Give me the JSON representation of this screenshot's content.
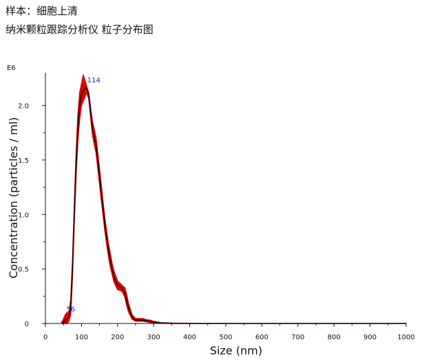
{
  "header": {
    "line1": "样本：细胞上清",
    "line2": "纳米颗粒跟踪分析仪  粒子分布图"
  },
  "colors": {
    "error_band": "#e00000",
    "mean_line": "#111111",
    "axis": "#111111",
    "peak_label": "#1a1acc"
  },
  "chart_data": {
    "type": "area",
    "xlabel": "Size (nm)",
    "ylabel": "Concentration (particles / ml)",
    "y_multiplier_label": "E6",
    "xlim": [
      0,
      1000
    ],
    "ylim": [
      0,
      2.3
    ],
    "x_ticks": [
      0,
      100,
      200,
      300,
      400,
      500,
      600,
      700,
      800,
      900,
      1000
    ],
    "x_tick_labels": [
      "0",
      "100",
      "200",
      "300",
      "400",
      "500",
      "600",
      "700",
      "800",
      "900",
      "1000"
    ],
    "y_ticks": [
      0,
      0.5,
      1.0,
      1.5,
      2.0
    ],
    "y_tick_labels": [
      "0",
      "0.5",
      "1.0",
      "1.5",
      "2.0"
    ],
    "series": [
      {
        "role": "mean",
        "x": [
          45,
          50,
          55,
          60,
          65,
          70,
          75,
          80,
          85,
          90,
          95,
          100,
          105,
          110,
          114,
          120,
          125,
          130,
          135,
          140,
          145,
          150,
          155,
          160,
          165,
          170,
          175,
          180,
          185,
          190,
          200,
          210,
          215,
          220,
          225,
          230,
          240,
          250,
          260,
          270,
          280,
          290,
          300,
          320,
          350,
          400,
          500,
          600,
          700,
          800,
          900,
          1000
        ],
        "y": [
          0,
          0.01,
          0.03,
          0.04,
          0.06,
          0.15,
          0.5,
          1.0,
          1.45,
          1.8,
          2.0,
          2.1,
          2.14,
          2.16,
          2.16,
          2.1,
          1.95,
          1.8,
          1.72,
          1.64,
          1.5,
          1.35,
          1.2,
          1.05,
          0.9,
          0.78,
          0.67,
          0.58,
          0.5,
          0.43,
          0.35,
          0.33,
          0.31,
          0.28,
          0.22,
          0.15,
          0.06,
          0.03,
          0.03,
          0.03,
          0.025,
          0.02,
          0.012,
          0.005,
          0.002,
          0,
          0,
          0,
          0,
          0,
          0,
          0
        ]
      },
      {
        "role": "error_upper",
        "x": [
          45,
          50,
          55,
          60,
          65,
          70,
          75,
          80,
          85,
          90,
          95,
          100,
          105,
          110,
          114,
          120,
          125,
          130,
          135,
          140,
          145,
          150,
          155,
          160,
          165,
          170,
          175,
          180,
          185,
          190,
          200,
          210,
          215,
          220,
          225,
          230,
          240,
          250,
          260,
          270,
          280,
          290,
          300,
          320,
          350,
          400,
          500,
          600,
          700,
          800,
          900,
          1000
        ],
        "y": [
          0.01,
          0.04,
          0.08,
          0.1,
          0.1,
          0.22,
          0.58,
          1.08,
          1.55,
          1.92,
          2.12,
          2.2,
          2.28,
          2.23,
          2.18,
          2.12,
          1.99,
          1.86,
          1.79,
          1.71,
          1.57,
          1.42,
          1.27,
          1.11,
          0.96,
          0.84,
          0.73,
          0.64,
          0.55,
          0.48,
          0.39,
          0.36,
          0.34,
          0.33,
          0.27,
          0.19,
          0.08,
          0.045,
          0.045,
          0.045,
          0.035,
          0.03,
          0.02,
          0.008,
          0.004,
          0.001,
          0,
          0,
          0,
          0,
          0,
          0
        ]
      },
      {
        "role": "error_lower",
        "x": [
          45,
          50,
          55,
          60,
          65,
          70,
          75,
          80,
          85,
          90,
          95,
          100,
          105,
          110,
          114,
          120,
          125,
          130,
          135,
          140,
          145,
          150,
          155,
          160,
          165,
          170,
          175,
          180,
          185,
          190,
          200,
          210,
          215,
          220,
          225,
          230,
          240,
          250,
          260,
          270,
          280,
          290,
          300,
          320,
          350,
          400,
          500,
          600,
          700,
          800,
          900,
          1000
        ],
        "y": [
          0,
          0,
          0,
          0,
          0.02,
          0.08,
          0.42,
          0.92,
          1.35,
          1.68,
          1.88,
          2.0,
          2.04,
          2.08,
          2.12,
          2.06,
          1.9,
          1.74,
          1.65,
          1.57,
          1.43,
          1.28,
          1.13,
          0.99,
          0.84,
          0.72,
          0.61,
          0.52,
          0.45,
          0.38,
          0.31,
          0.3,
          0.28,
          0.24,
          0.17,
          0.11,
          0.04,
          0.02,
          0.02,
          0.02,
          0.015,
          0.01,
          0.005,
          0.002,
          0,
          0,
          0,
          0,
          0,
          0,
          0,
          0
        ]
      }
    ],
    "annotations": [
      {
        "text": "114",
        "x": 114,
        "y": 2.16
      },
      {
        "text": "56",
        "x": 56,
        "y": 0.06
      }
    ]
  }
}
